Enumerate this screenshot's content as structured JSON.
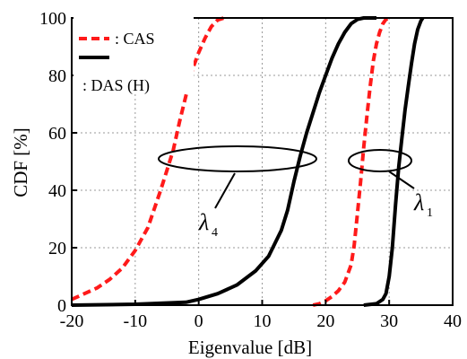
{
  "chart_data": {
    "type": "line",
    "xlabel": "Eigenvalue [dB]",
    "ylabel": "CDF [%]",
    "xlim": [
      -20,
      40
    ],
    "ylim": [
      0,
      100
    ],
    "x_ticks": [
      "-20",
      "-10",
      "0",
      "10",
      "20",
      "30",
      "40"
    ],
    "y_ticks": [
      "0",
      "20",
      "40",
      "60",
      "80",
      "100"
    ],
    "grid": true,
    "legend_position": "top-left",
    "legend": [
      {
        "label": ": CAS",
        "color": "#ff1a1a",
        "dash": "dashed"
      },
      {
        "label": ": DAS (H)",
        "color": "#000000",
        "dash": "solid"
      }
    ],
    "annotations": [
      {
        "symbol": "λ",
        "subscript": "4"
      },
      {
        "symbol": "λ",
        "subscript": "1"
      }
    ],
    "series": [
      {
        "legend": "CAS",
        "eigenvalue": "lambda_4",
        "color": "#ff1a1a",
        "dash": "dashed",
        "points": [
          [
            -20,
            2
          ],
          [
            -18,
            4
          ],
          [
            -16,
            6
          ],
          [
            -14,
            9
          ],
          [
            -12,
            13
          ],
          [
            -10,
            19
          ],
          [
            -8,
            27
          ],
          [
            -6,
            40
          ],
          [
            -5,
            47
          ],
          [
            -4,
            54
          ],
          [
            -3,
            64
          ],
          [
            -2,
            73
          ],
          [
            -1,
            82
          ],
          [
            0,
            88
          ],
          [
            1,
            93
          ],
          [
            2,
            97
          ],
          [
            3,
            99.3
          ],
          [
            4,
            100
          ]
        ]
      },
      {
        "legend": "DAS (H)",
        "eigenvalue": "lambda_4",
        "color": "#000000",
        "dash": "solid",
        "points": [
          [
            -20,
            0
          ],
          [
            -10,
            0.3
          ],
          [
            -2,
            1
          ],
          [
            0,
            2
          ],
          [
            3,
            4
          ],
          [
            6,
            7
          ],
          [
            9,
            12
          ],
          [
            11,
            17
          ],
          [
            13,
            26
          ],
          [
            14,
            33
          ],
          [
            15,
            43
          ],
          [
            16,
            52
          ],
          [
            17,
            60
          ],
          [
            18,
            67
          ],
          [
            19,
            74
          ],
          [
            20,
            80
          ],
          [
            21,
            86
          ],
          [
            22,
            91
          ],
          [
            23,
            95
          ],
          [
            24,
            98
          ],
          [
            25,
            99.5
          ],
          [
            26,
            100
          ],
          [
            28,
            100
          ]
        ]
      },
      {
        "legend": "CAS",
        "eigenvalue": "lambda_1",
        "color": "#ff1a1a",
        "dash": "dashed",
        "points": [
          [
            18,
            0
          ],
          [
            19,
            0.5
          ],
          [
            20,
            1.5
          ],
          [
            21,
            3
          ],
          [
            22,
            5
          ],
          [
            23,
            8
          ],
          [
            24,
            14
          ],
          [
            24.5,
            21
          ],
          [
            25,
            32
          ],
          [
            25.5,
            43
          ],
          [
            26,
            55
          ],
          [
            26.5,
            66
          ],
          [
            27,
            76
          ],
          [
            27.5,
            85
          ],
          [
            28,
            91
          ],
          [
            28.5,
            95
          ],
          [
            29,
            98
          ],
          [
            29.5,
            99.5
          ],
          [
            30,
            100
          ]
        ]
      },
      {
        "legend": "DAS (H)",
        "eigenvalue": "lambda_1",
        "color": "#000000",
        "dash": "solid",
        "points": [
          [
            26,
            0
          ],
          [
            28,
            0.5
          ],
          [
            29,
            2
          ],
          [
            29.5,
            4
          ],
          [
            30,
            10
          ],
          [
            30.5,
            20
          ],
          [
            31,
            35
          ],
          [
            31.5,
            48
          ],
          [
            32,
            58
          ],
          [
            32.5,
            68
          ],
          [
            33,
            76
          ],
          [
            33.5,
            84
          ],
          [
            34,
            91
          ],
          [
            34.5,
            96
          ],
          [
            35,
            99
          ],
          [
            35.3,
            100
          ]
        ]
      }
    ]
  }
}
